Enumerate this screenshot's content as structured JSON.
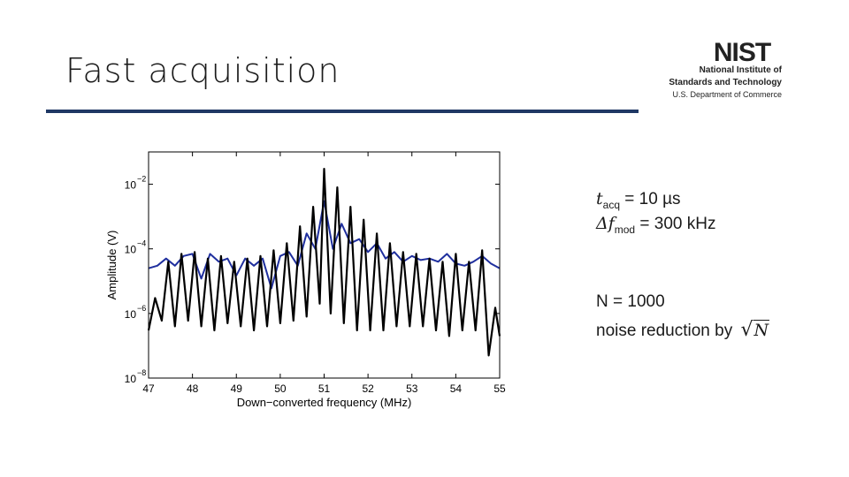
{
  "slide": {
    "title": "Fast acquisition",
    "logo": {
      "mark": "NIST",
      "line1": "National Institute of",
      "line2": "Standards and Technology",
      "line3": "U.S. Department of Commerce"
    },
    "annotations": {
      "tacq_var": "t",
      "tacq_sub": "acq",
      "tacq_value": " = 10 µs",
      "fmod_var": "Δf",
      "fmod_sub": "mod",
      "fmod_value": " = 300 kHz",
      "n_text": "N = 1000",
      "noise_text": "noise reduction by ",
      "sqrt_symbol": "√",
      "sqrt_var": "N"
    }
  },
  "colors": {
    "title_rule": "#1f3864",
    "series_black": "#000000",
    "series_blue": "#1f2f9e"
  },
  "chart_data": {
    "type": "line",
    "xlabel": "Down−converted frequency (MHz)",
    "ylabel": "Amplitude (V)",
    "xlim": [
      47,
      55
    ],
    "ylim": [
      1e-08,
      0.1
    ],
    "yscale": "log",
    "xticks": [
      "47",
      "48",
      "49",
      "50",
      "51",
      "52",
      "53",
      "54",
      "55"
    ],
    "yticks": [
      {
        "base": "10",
        "exp": "−2",
        "value": 0.01
      },
      {
        "base": "10",
        "exp": "−4",
        "value": 0.0001
      },
      {
        "base": "10",
        "exp": "−6",
        "value": 1e-06
      },
      {
        "base": "10",
        "exp": "−8",
        "value": 1e-08
      }
    ],
    "grid": false,
    "legend": "none",
    "series": [
      {
        "color": "#000000",
        "x": [
          47.0,
          47.15,
          47.3,
          47.45,
          47.6,
          47.75,
          47.9,
          48.05,
          48.2,
          48.35,
          48.5,
          48.65,
          48.8,
          48.95,
          49.1,
          49.25,
          49.4,
          49.55,
          49.7,
          49.85,
          50.0,
          50.15,
          50.3,
          50.45,
          50.6,
          50.75,
          50.9,
          51.0,
          51.15,
          51.3,
          51.45,
          51.6,
          51.75,
          51.9,
          52.05,
          52.2,
          52.35,
          52.5,
          52.65,
          52.8,
          52.95,
          53.1,
          53.25,
          53.4,
          53.55,
          53.7,
          53.85,
          54.0,
          54.15,
          54.3,
          54.45,
          54.6,
          54.75,
          54.9,
          55.0
        ],
        "y": [
          3e-07,
          3e-06,
          6e-07,
          4e-05,
          4e-07,
          7e-05,
          6e-07,
          8e-05,
          4e-07,
          5e-05,
          3e-07,
          6e-05,
          5e-07,
          4e-05,
          4e-07,
          5e-05,
          3e-07,
          6e-05,
          4e-07,
          9e-05,
          5e-07,
          0.00015,
          6e-07,
          0.0005,
          8e-07,
          0.002,
          2e-06,
          0.03,
          1e-06,
          0.008,
          5e-07,
          0.002,
          3e-07,
          0.0008,
          3e-07,
          0.0003,
          3e-07,
          0.00015,
          4e-07,
          8e-05,
          4e-07,
          7e-05,
          4e-07,
          5e-05,
          3e-07,
          4e-05,
          2e-07,
          7e-05,
          3e-07,
          4e-05,
          3e-07,
          9e-05,
          5e-08,
          1.5e-06,
          2e-07
        ]
      },
      {
        "color": "#1f2f9e",
        "x": [
          47.0,
          47.2,
          47.4,
          47.6,
          47.8,
          48.0,
          48.2,
          48.4,
          48.6,
          48.8,
          49.0,
          49.2,
          49.4,
          49.6,
          49.8,
          50.0,
          50.2,
          50.4,
          50.6,
          50.8,
          51.0,
          51.2,
          51.4,
          51.6,
          51.8,
          52.0,
          52.2,
          52.4,
          52.6,
          52.8,
          53.0,
          53.2,
          53.4,
          53.6,
          53.8,
          54.0,
          54.2,
          54.4,
          54.6,
          54.8,
          55.0
        ],
        "y": [
          2.5e-05,
          3e-05,
          5e-05,
          3e-05,
          6e-05,
          7e-05,
          1.2e-05,
          7e-05,
          4e-05,
          5e-05,
          1.5e-05,
          5e-05,
          3e-05,
          5e-05,
          6e-06,
          6e-05,
          8e-05,
          3e-05,
          0.0003,
          0.0001,
          0.003,
          0.0001,
          0.0006,
          0.00015,
          0.0002,
          8e-05,
          0.00015,
          5e-05,
          8e-05,
          4e-05,
          6e-05,
          4.5e-05,
          5e-05,
          4e-05,
          7e-05,
          3.5e-05,
          3e-05,
          4e-05,
          6e-05,
          3.5e-05,
          2.5e-05
        ]
      }
    ]
  }
}
